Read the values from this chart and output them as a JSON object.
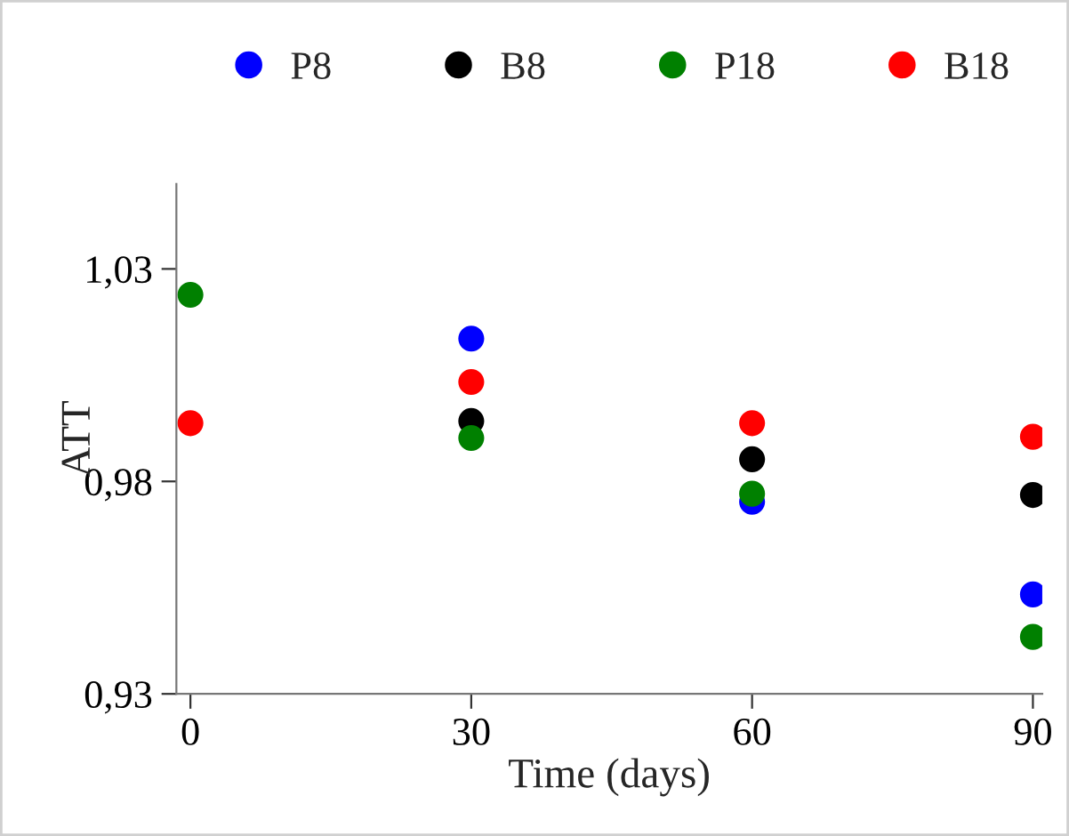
{
  "chart_data": {
    "type": "scatter",
    "xlabel": "Time (days)",
    "ylabel": "ATT",
    "x": [
      0,
      30,
      60,
      90
    ],
    "series": [
      {
        "name": "P8",
        "color": "#0000ff",
        "values": [
          null,
          1.0136,
          0.9752,
          0.9534
        ]
      },
      {
        "name": "B8",
        "color": "#000000",
        "values": [
          null,
          0.9942,
          0.9852,
          0.9768
        ]
      },
      {
        "name": "P18",
        "color": "#008000",
        "values": [
          1.0239,
          0.9902,
          0.9771,
          0.9434
        ]
      },
      {
        "name": "B18",
        "color": "#ff0000",
        "values": [
          0.9937,
          1.0034,
          0.9937,
          0.9905
        ]
      }
    ],
    "xlim": [
      -1.5,
      91
    ],
    "xticks": [
      0,
      30,
      60,
      90
    ],
    "ylim": [
      0.93,
      1.05
    ],
    "yticks": [
      {
        "value": 0.93,
        "label": "0,93"
      },
      {
        "value": 0.98,
        "label": "0,98"
      },
      {
        "value": 1.03,
        "label": "1,03"
      }
    ],
    "grid": false,
    "legend": "top",
    "marker": "circle"
  }
}
